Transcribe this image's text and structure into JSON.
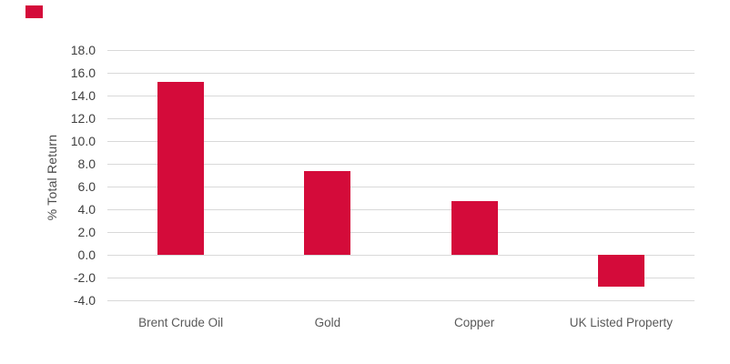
{
  "brand_mark": {
    "color": "#D40B3A"
  },
  "chart_data": {
    "type": "bar",
    "title": "",
    "xlabel": "",
    "ylabel": "% Total Return",
    "categories": [
      "Brent Crude Oil",
      "Gold",
      "Copper",
      "UK Listed Property"
    ],
    "values": [
      15.2,
      7.4,
      4.7,
      -2.8
    ],
    "ylim": [
      -4,
      18
    ],
    "ytick_step": 2,
    "yticks": [
      {
        "value": 18,
        "label": "18.0"
      },
      {
        "value": 16,
        "label": "16.0"
      },
      {
        "value": 14,
        "label": "14.0"
      },
      {
        "value": 12,
        "label": "12.0"
      },
      {
        "value": 10,
        "label": "10.0"
      },
      {
        "value": 8,
        "label": "8.0"
      },
      {
        "value": 6,
        "label": "6.0"
      },
      {
        "value": 4,
        "label": "4.0"
      },
      {
        "value": 2,
        "label": "2.0"
      },
      {
        "value": 0,
        "label": "0.0"
      },
      {
        "value": -2,
        "label": "-2.0"
      },
      {
        "value": -4,
        "label": "-4.0"
      }
    ],
    "grid": true,
    "legend": "none",
    "bar_color": "#D40B3A",
    "gridline_color": "#D9D9D9",
    "tick_text_color": "#3F3F3F",
    "category_text_color": "#595959",
    "ylabel_text_color": "#4A4A4A"
  }
}
